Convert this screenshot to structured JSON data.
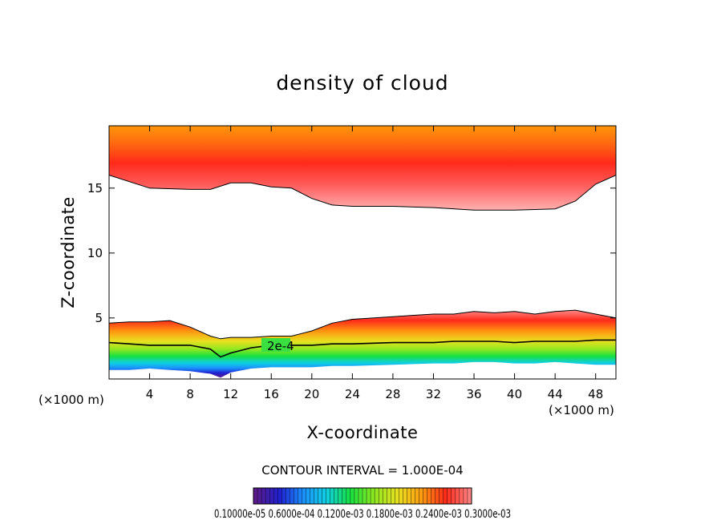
{
  "chart_data": {
    "type": "heatmap",
    "title": "density of cloud",
    "xlabel": "X-coordinate",
    "ylabel": "Z-coordinate",
    "x_unit": "(×1000 m)",
    "y_unit": "(×1000 m)",
    "xlim": [
      0,
      50
    ],
    "ylim": [
      0.3,
      19.8
    ],
    "x_ticks": [
      4,
      8,
      12,
      16,
      20,
      24,
      28,
      32,
      36,
      40,
      44,
      48
    ],
    "y_ticks": [
      5,
      10,
      15
    ],
    "contour_interval_text": "CONTOUR INTERVAL = 1.000E-04",
    "contour_label": "2e-4",
    "colorbar_labels": "0.10000e-05 0.6000e-04 0.1200e-03 0.1800e-03 0.2400e-03 0.3000e-03",
    "colorbar_colors": [
      "#5b1a8a",
      "#2020d0",
      "#1a90ff",
      "#10d0e0",
      "#18e040",
      "#90e820",
      "#e8e020",
      "#ff9a10",
      "#ff2a1a",
      "#ff8080"
    ],
    "upper_layer": {
      "x": [
        0,
        4,
        8,
        10,
        12,
        14,
        16,
        18,
        20,
        22,
        24,
        28,
        32,
        36,
        40,
        44,
        46,
        48,
        50
      ],
      "bottom": [
        16.0,
        15.0,
        14.9,
        14.9,
        15.4,
        15.4,
        15.1,
        15.0,
        14.2,
        13.7,
        13.6,
        13.6,
        13.5,
        13.3,
        13.3,
        13.4,
        14.0,
        15.3,
        16.0
      ]
    },
    "lower_layer": {
      "x": [
        0,
        2,
        4,
        6,
        8,
        10,
        11,
        12,
        14,
        16,
        18,
        20,
        22,
        24,
        28,
        32,
        34,
        36,
        38,
        40,
        42,
        44,
        46,
        48,
        50
      ],
      "top": [
        4.6,
        4.7,
        4.7,
        4.8,
        4.3,
        3.6,
        3.4,
        3.5,
        3.5,
        3.6,
        3.6,
        4.0,
        4.6,
        4.9,
        5.1,
        5.3,
        5.3,
        5.5,
        5.4,
        5.5,
        5.3,
        5.5,
        5.6,
        5.3,
        5.0
      ],
      "contour_2e4": [
        3.1,
        3.0,
        2.9,
        2.9,
        2.9,
        2.6,
        2.0,
        2.3,
        2.7,
        2.9,
        2.9,
        2.9,
        3.0,
        3.0,
        3.1,
        3.1,
        3.2,
        3.2,
        3.2,
        3.1,
        3.2,
        3.2,
        3.2,
        3.3,
        3.3
      ],
      "base": [
        1.0,
        1.0,
        1.1,
        1.0,
        0.9,
        0.7,
        0.4,
        0.8,
        1.1,
        1.2,
        1.2,
        1.2,
        1.3,
        1.3,
        1.4,
        1.5,
        1.5,
        1.6,
        1.6,
        1.5,
        1.5,
        1.6,
        1.5,
        1.4,
        1.4
      ]
    }
  }
}
